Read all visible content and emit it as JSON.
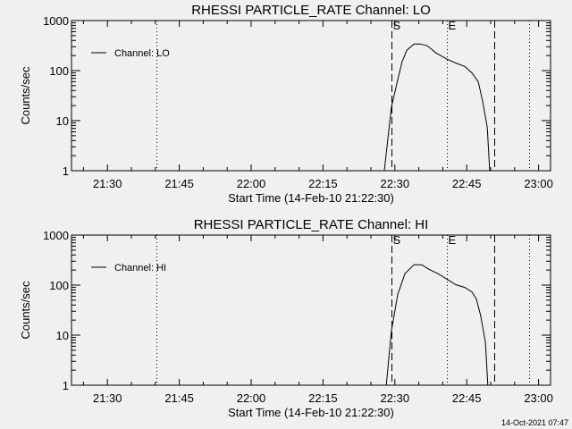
{
  "colors": {
    "background": "#f0f0f0",
    "ink": "#000000"
  },
  "timestamp": "14-Oct-2021 07:47",
  "chart_data": [
    {
      "type": "line",
      "title": "RHESSI PARTICLE_RATE Channel: LO",
      "xlabel": "Start Time (14-Feb-10 21:22:30)",
      "ylabel": "Counts/sec",
      "yscale": "log",
      "ylim": [
        1,
        1000
      ],
      "xlim": [
        "21:22:30",
        "23:02:30"
      ],
      "xticks": [
        "21:30",
        "21:45",
        "22:00",
        "22:15",
        "22:30",
        "22:45",
        "23:00"
      ],
      "yticks": [
        "1",
        "10",
        "100",
        "1000"
      ],
      "legend": {
        "label": "Channel: LO",
        "placement": "top-left"
      },
      "markers": [
        {
          "time": "21:40:12",
          "style": "dotted",
          "label": ""
        },
        {
          "time": "22:29:18",
          "style": "dashed",
          "label": "S"
        },
        {
          "time": "22:40:54",
          "style": "dotted",
          "label": "E"
        },
        {
          "time": "22:50:42",
          "style": "dashed",
          "label": ""
        },
        {
          "time": "22:58:00",
          "style": "dotted",
          "label": ""
        }
      ],
      "series": [
        {
          "name": "Channel: LO",
          "x": [
            "22:27:48",
            "22:29:18",
            "22:30:36",
            "22:31:30",
            "22:32:30",
            "22:34:00",
            "22:35:18",
            "22:36:48",
            "22:38:36",
            "22:40:54",
            "22:42:42",
            "22:44:36",
            "22:46:06",
            "22:47:24",
            "22:48:18",
            "22:49:18",
            "22:49:48"
          ],
          "y": [
            1,
            19,
            65,
            149,
            255,
            340,
            340,
            312,
            225,
            169,
            142,
            121,
            90,
            60,
            25,
            7.3,
            1
          ]
        }
      ]
    },
    {
      "type": "line",
      "title": "RHESSI PARTICLE_RATE Channel: HI",
      "xlabel": "Start Time (14-Feb-10 21:22:30)",
      "ylabel": "Counts/sec",
      "yscale": "log",
      "ylim": [
        1,
        1000
      ],
      "xlim": [
        "21:22:30",
        "23:02:30"
      ],
      "xticks": [
        "21:30",
        "21:45",
        "22:00",
        "22:15",
        "22:30",
        "22:45",
        "23:00"
      ],
      "yticks": [
        "1",
        "10",
        "100",
        "1000"
      ],
      "legend": {
        "label": "Channel: HI",
        "placement": "top-left"
      },
      "markers": [
        {
          "time": "21:40:12",
          "style": "dotted",
          "label": ""
        },
        {
          "time": "22:29:18",
          "style": "dashed",
          "label": "S"
        },
        {
          "time": "22:40:54",
          "style": "dotted",
          "label": "E"
        },
        {
          "time": "22:50:42",
          "style": "dashed",
          "label": ""
        },
        {
          "time": "22:58:00",
          "style": "dotted",
          "label": ""
        }
      ],
      "series": [
        {
          "name": "Channel: HI",
          "x": [
            "22:28:12",
            "22:29:18",
            "22:30:36",
            "22:32:06",
            "22:34:00",
            "22:35:36",
            "22:37:06",
            "22:39:00",
            "22:40:54",
            "22:42:42",
            "22:44:36",
            "22:46:06",
            "22:47:00",
            "22:47:54",
            "22:48:54",
            "22:49:24"
          ],
          "y": [
            1,
            12.4,
            65,
            169,
            255,
            255,
            207,
            169,
            131,
            102,
            90,
            73,
            53,
            25,
            7.3,
            1
          ]
        }
      ]
    }
  ]
}
